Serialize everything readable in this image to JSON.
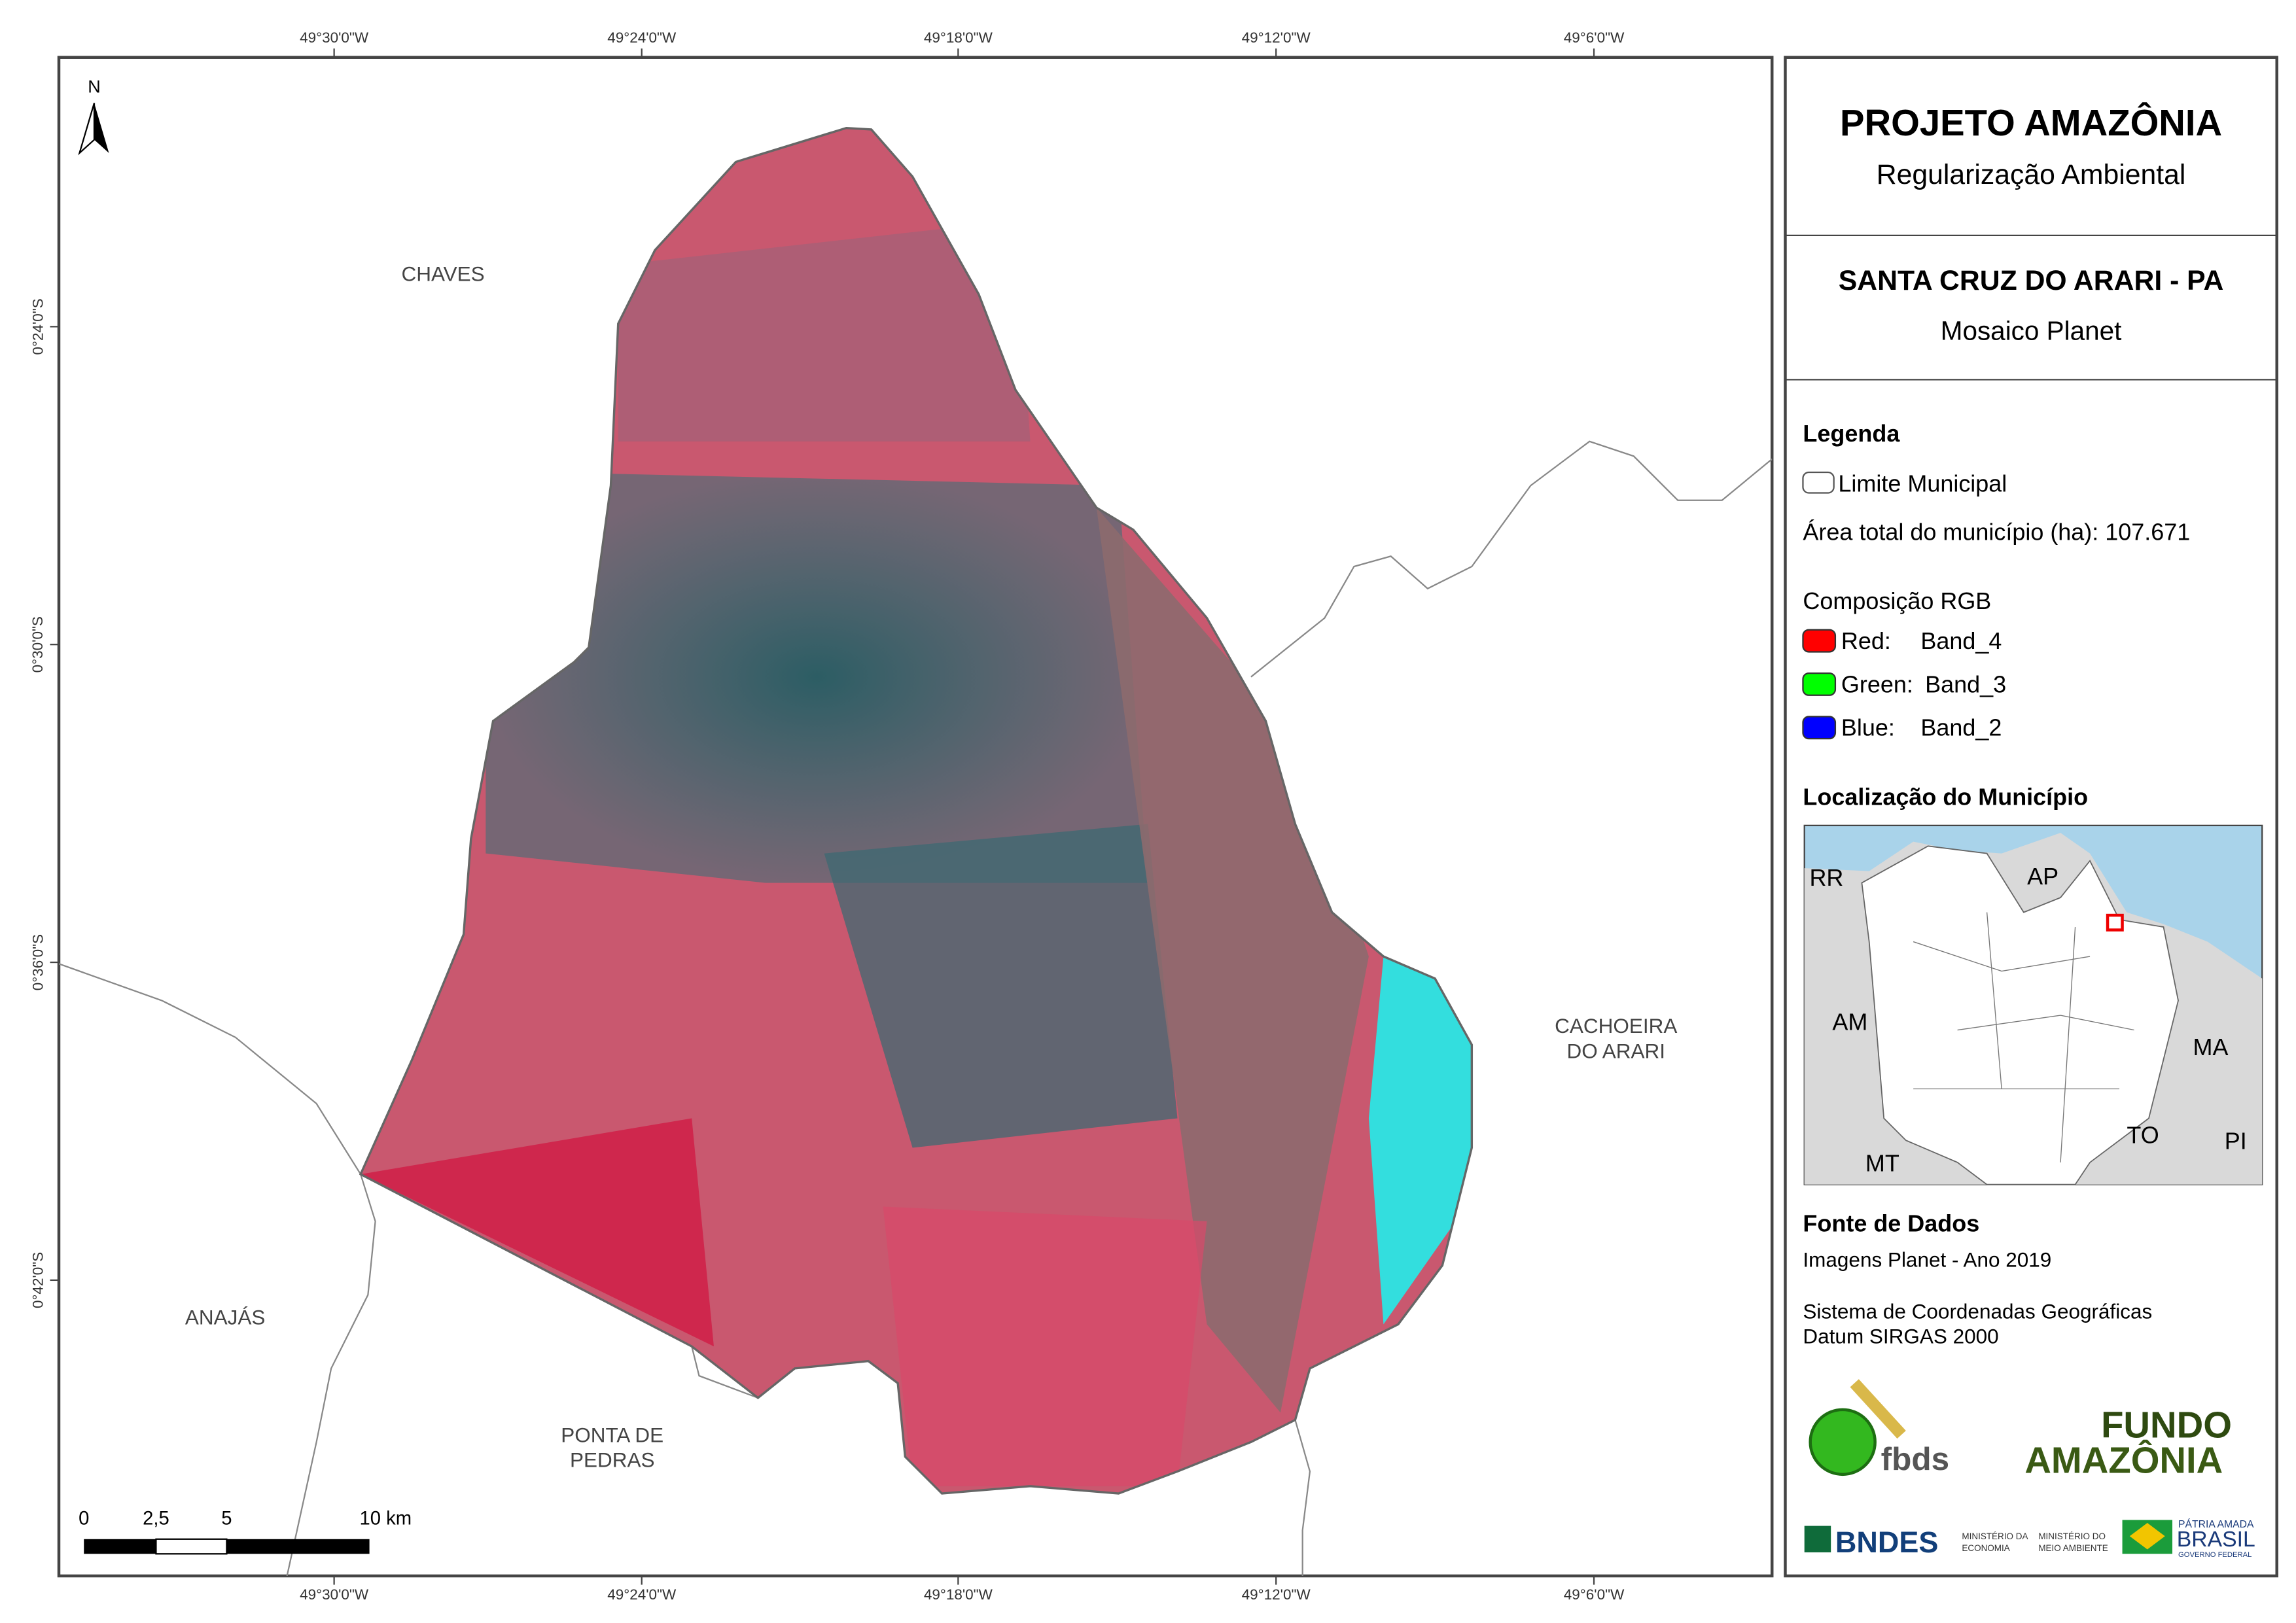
{
  "north_arrow": "N",
  "coordinates": {
    "top": [
      "49°30'0\"W",
      "49°24'0\"W",
      "49°18'0\"W",
      "49°12'0\"W",
      "49°6'0\"W"
    ],
    "bottom": [
      "49°30'0\"W",
      "49°24'0\"W",
      "49°18'0\"W",
      "49°12'0\"W",
      "49°6'0\"W"
    ],
    "left": [
      "0°24'0\"S",
      "0°30'0\"S",
      "0°36'0\"S",
      "0°42'0\"S"
    ]
  },
  "places": [
    {
      "lines": [
        "CHAVES"
      ]
    },
    {
      "lines": [
        "CACHOEIRA",
        "DO ARARI"
      ]
    },
    {
      "lines": [
        "ANAJÁS"
      ]
    },
    {
      "lines": [
        "PONTA DE",
        "PEDRAS"
      ]
    }
  ],
  "scale_bar": [
    "0",
    "2,5",
    "5",
    "10 km"
  ],
  "panel": {
    "title": "PROJETO AMAZÔNIA",
    "subtitle": "Regularização Ambiental",
    "map_title": "SANTA CRUZ DO ARARI - PA",
    "map_subtitle": "Mosaico Planet",
    "legend": {
      "heading": "Legenda",
      "boundary": "Limite Municipal",
      "area": "Área total do município (ha): 107.671",
      "rgb_heading": "Composição RGB",
      "bands": [
        {
          "channel": "Red:",
          "band": "Band_4",
          "color": "#ff0000"
        },
        {
          "channel": "Green:",
          "band": "Band_3",
          "color": "#00ff00"
        },
        {
          "channel": "Blue:",
          "band": "Band_2",
          "color": "#0000ff"
        }
      ]
    },
    "location": {
      "heading": "Localização do Município",
      "labels": [
        "RR",
        "AP",
        "AM",
        "MA",
        "TO",
        "PI",
        "MT"
      ]
    },
    "sources": {
      "heading": "Fonte de Dados",
      "images": "Imagens Planet - Ano 2019",
      "crs": [
        "Sistema de Coordenadas Geográficas",
        "Datum SIRGAS 2000"
      ]
    },
    "logos": {
      "fbds": "fbds",
      "fundo": [
        "FUNDO",
        "AMAZÔNIA"
      ],
      "bndes": "BNDES",
      "ministries": [
        "MINISTÉRIO DA",
        "ECONOMIA",
        "MINISTÉRIO DO",
        "MEIO AMBIENTE"
      ],
      "brasil": [
        "PÁTRIA AMADA",
        "BRASIL",
        "GOVERNO FEDERAL"
      ]
    }
  }
}
